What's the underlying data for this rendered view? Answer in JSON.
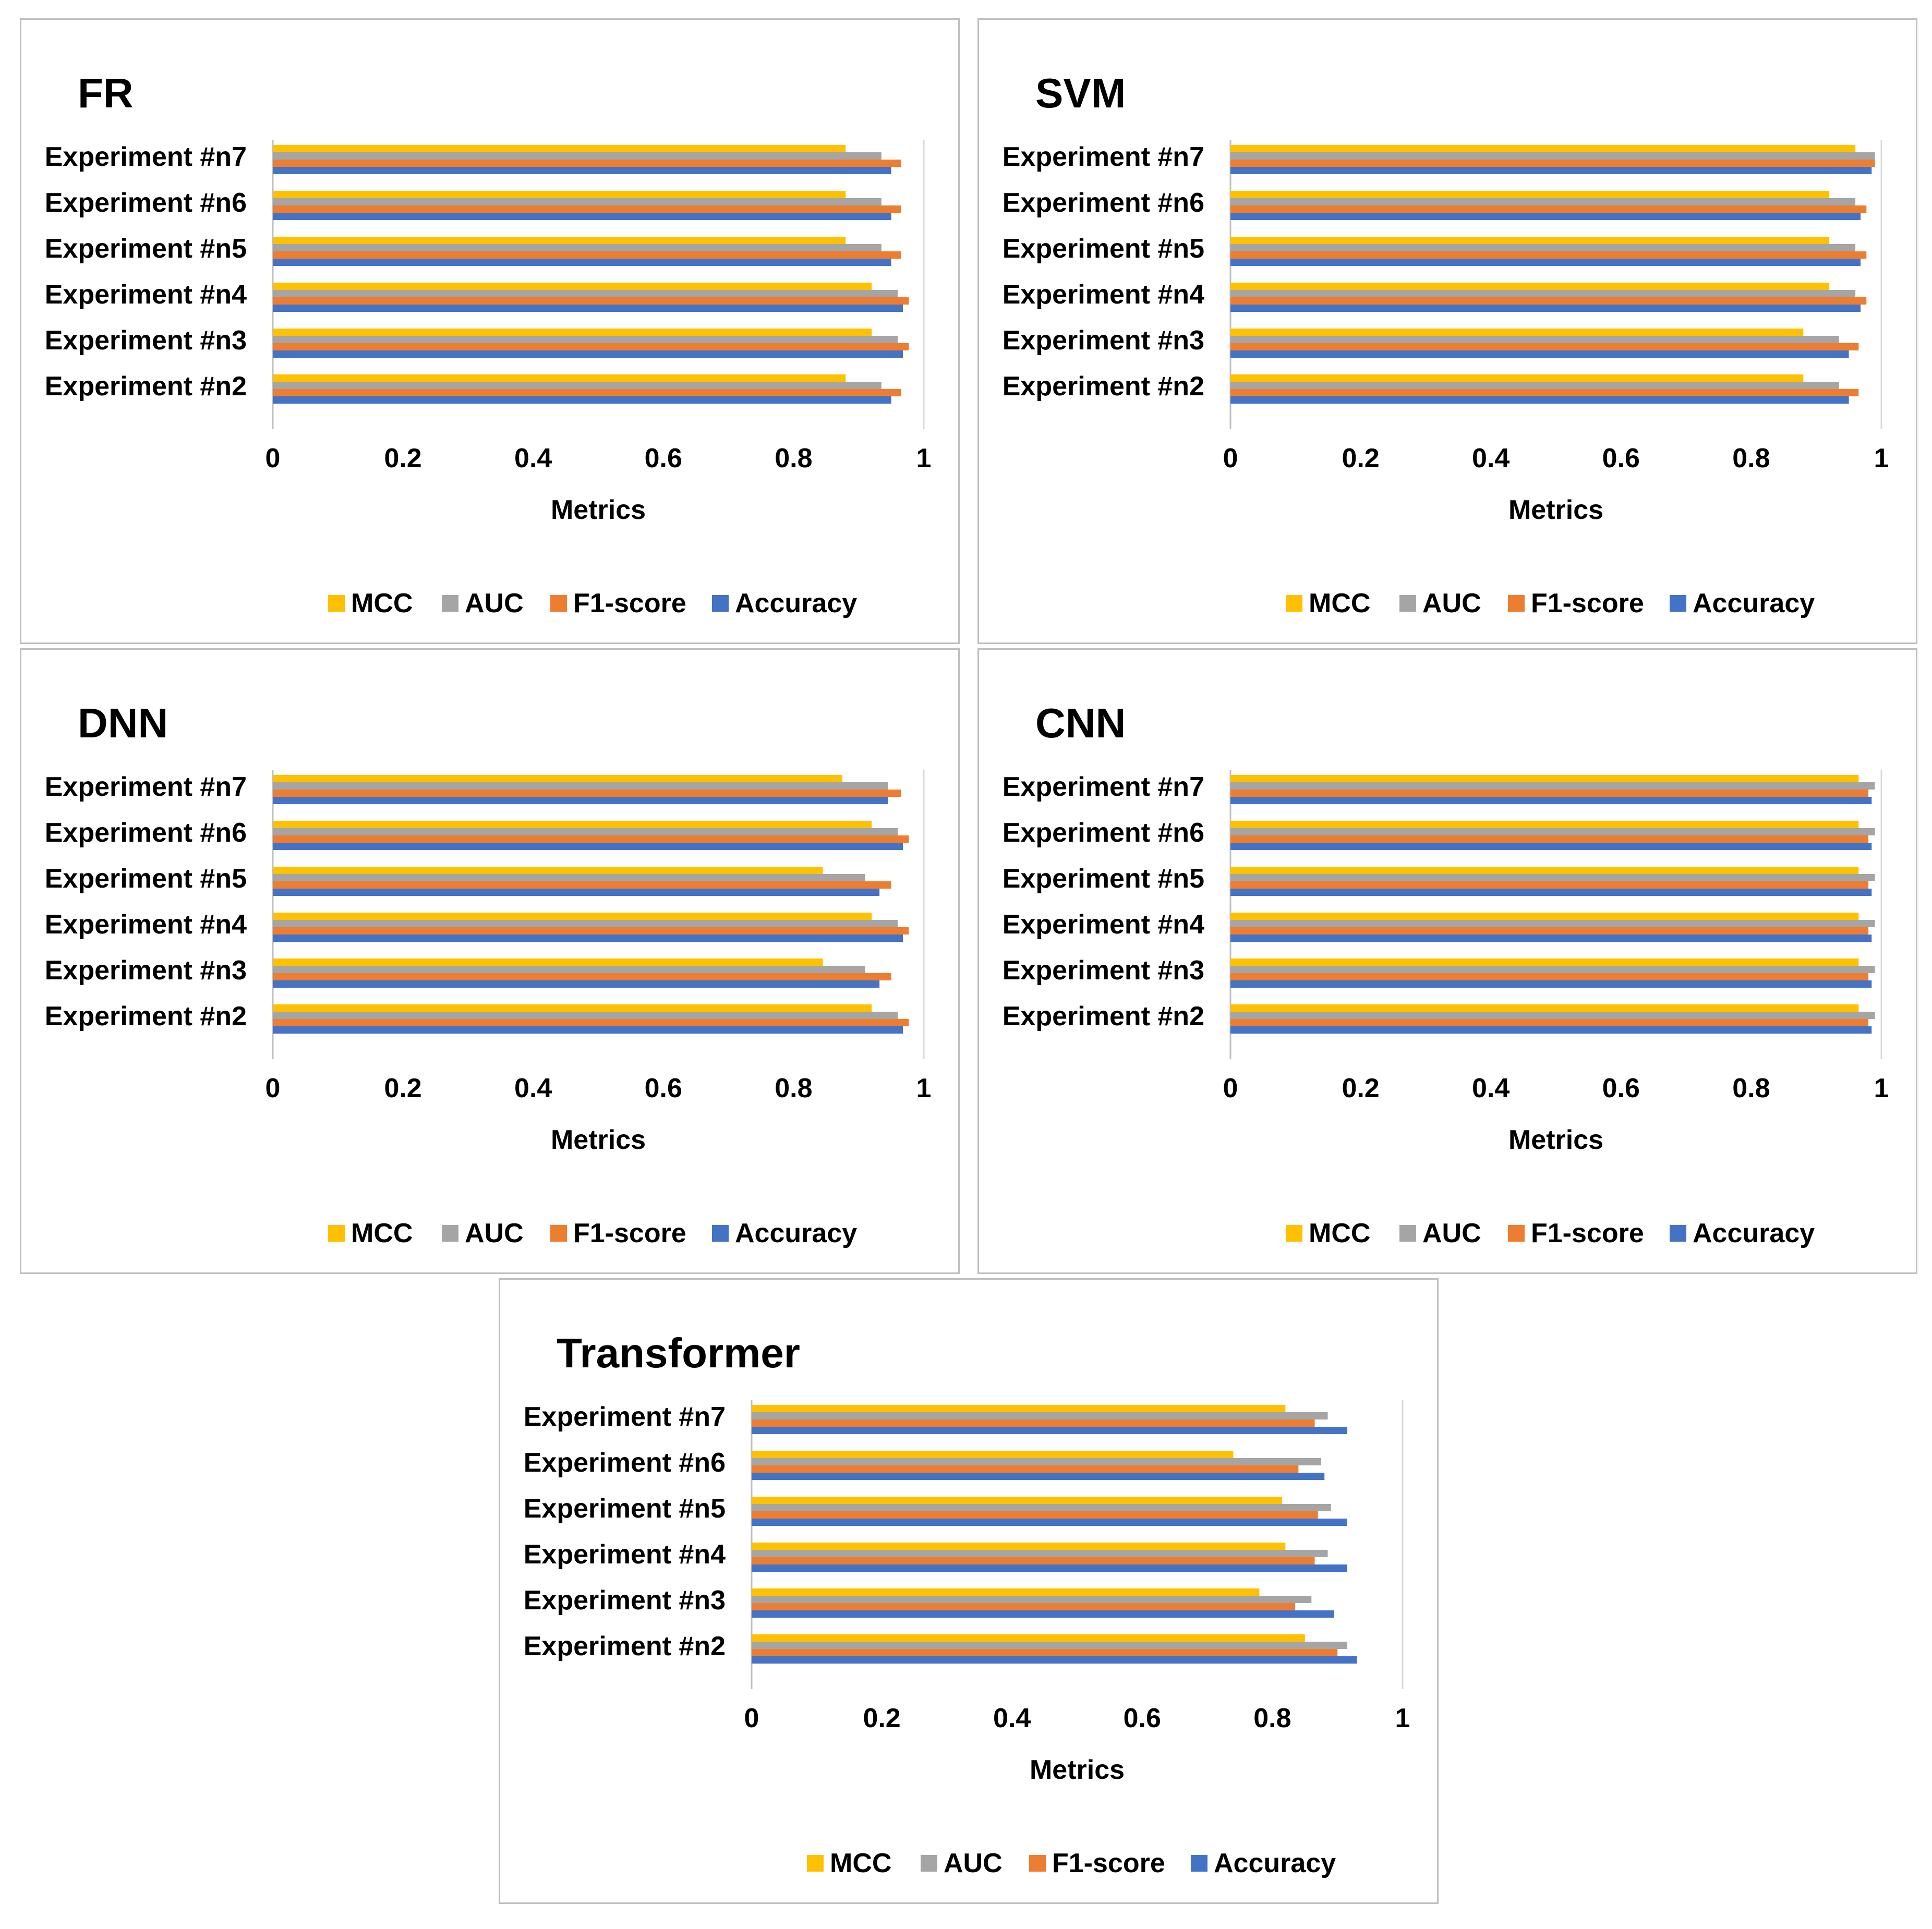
{
  "chart_data": [
    {
      "type": "bar",
      "orientation": "horizontal",
      "title": "FR",
      "xlabel": "Metrics",
      "ylabel": "",
      "categories": [
        "Experiment #n2",
        "Experiment #n3",
        "Experiment #n4",
        "Experiment #n5",
        "Experiment #n6",
        "Experiment #n7"
      ],
      "xlim": [
        0,
        1
      ],
      "xticks": [
        "0",
        "0.2",
        "0.4",
        "0.6",
        "0.8",
        "1"
      ],
      "legend_position": "bottom",
      "series": [
        {
          "name": "MCC",
          "color": "#FFC000",
          "values": [
            0.88,
            0.92,
            0.92,
            0.88,
            0.88,
            0.88
          ]
        },
        {
          "name": "AUC",
          "color": "#A5A5A5",
          "values": [
            0.935,
            0.96,
            0.96,
            0.935,
            0.935,
            0.935
          ]
        },
        {
          "name": "F1-score",
          "color": "#ED7D31",
          "values": [
            0.965,
            0.977,
            0.977,
            0.965,
            0.965,
            0.965
          ]
        },
        {
          "name": "Accuracy",
          "color": "#4472C4",
          "values": [
            0.95,
            0.968,
            0.968,
            0.95,
            0.95,
            0.95
          ]
        }
      ]
    },
    {
      "type": "bar",
      "orientation": "horizontal",
      "title": "SVM",
      "xlabel": "Metrics",
      "ylabel": "",
      "categories": [
        "Experiment #n2",
        "Experiment #n3",
        "Experiment #n4",
        "Experiment #n5",
        "Experiment #n6",
        "Experiment #n7"
      ],
      "xlim": [
        0,
        1
      ],
      "xticks": [
        "0",
        "0.2",
        "0.4",
        "0.6",
        "0.8",
        "1"
      ],
      "legend_position": "bottom",
      "series": [
        {
          "name": "MCC",
          "color": "#FFC000",
          "values": [
            0.88,
            0.88,
            0.92,
            0.92,
            0.92,
            0.96
          ]
        },
        {
          "name": "AUC",
          "color": "#A5A5A5",
          "values": [
            0.935,
            0.935,
            0.96,
            0.96,
            0.96,
            0.99
          ]
        },
        {
          "name": "F1-score",
          "color": "#ED7D31",
          "values": [
            0.965,
            0.965,
            0.977,
            0.977,
            0.977,
            0.99
          ]
        },
        {
          "name": "Accuracy",
          "color": "#4472C4",
          "values": [
            0.95,
            0.95,
            0.968,
            0.968,
            0.968,
            0.985
          ]
        }
      ]
    },
    {
      "type": "bar",
      "orientation": "horizontal",
      "title": "DNN",
      "xlabel": "Metrics",
      "ylabel": "",
      "categories": [
        "Experiment #n2",
        "Experiment #n3",
        "Experiment #n4",
        "Experiment #n5",
        "Experiment #n6",
        "Experiment #n7"
      ],
      "xlim": [
        0,
        1
      ],
      "xticks": [
        "0",
        "0.2",
        "0.4",
        "0.6",
        "0.8",
        "1"
      ],
      "legend_position": "bottom",
      "series": [
        {
          "name": "MCC",
          "color": "#FFC000",
          "values": [
            0.92,
            0.845,
            0.92,
            0.845,
            0.92,
            0.875
          ]
        },
        {
          "name": "AUC",
          "color": "#A5A5A5",
          "values": [
            0.96,
            0.91,
            0.96,
            0.91,
            0.96,
            0.945
          ]
        },
        {
          "name": "F1-score",
          "color": "#ED7D31",
          "values": [
            0.977,
            0.95,
            0.977,
            0.95,
            0.977,
            0.965
          ]
        },
        {
          "name": "Accuracy",
          "color": "#4472C4",
          "values": [
            0.968,
            0.932,
            0.968,
            0.932,
            0.968,
            0.945
          ]
        }
      ]
    },
    {
      "type": "bar",
      "orientation": "horizontal",
      "title": "CNN",
      "xlabel": "Metrics",
      "ylabel": "",
      "categories": [
        "Experiment #n2",
        "Experiment #n3",
        "Experiment #n4",
        "Experiment #n5",
        "Experiment #n6",
        "Experiment #n7"
      ],
      "xlim": [
        0,
        1
      ],
      "xticks": [
        "0",
        "0.2",
        "0.4",
        "0.6",
        "0.8",
        "1"
      ],
      "legend_position": "bottom",
      "series": [
        {
          "name": "MCC",
          "color": "#FFC000",
          "values": [
            0.965,
            0.965,
            0.965,
            0.965,
            0.965,
            0.965
          ]
        },
        {
          "name": "AUC",
          "color": "#A5A5A5",
          "values": [
            0.99,
            0.99,
            0.99,
            0.99,
            0.99,
            0.99
          ]
        },
        {
          "name": "F1-score",
          "color": "#ED7D31",
          "values": [
            0.98,
            0.98,
            0.98,
            0.98,
            0.98,
            0.98
          ]
        },
        {
          "name": "Accuracy",
          "color": "#4472C4",
          "values": [
            0.985,
            0.985,
            0.985,
            0.985,
            0.985,
            0.985
          ]
        }
      ]
    },
    {
      "type": "bar",
      "orientation": "horizontal",
      "title": "Transformer",
      "xlabel": "Metrics",
      "ylabel": "",
      "categories": [
        "Experiment #n2",
        "Experiment #n3",
        "Experiment #n4",
        "Experiment #n5",
        "Experiment #n6",
        "Experiment #n7"
      ],
      "xlim": [
        0,
        1
      ],
      "xticks": [
        "0",
        "0.2",
        "0.4",
        "0.6",
        "0.8",
        "1"
      ],
      "legend_position": "bottom",
      "series": [
        {
          "name": "MCC",
          "color": "#FFC000",
          "values": [
            0.85,
            0.78,
            0.82,
            0.815,
            0.74,
            0.82
          ]
        },
        {
          "name": "AUC",
          "color": "#A5A5A5",
          "values": [
            0.915,
            0.86,
            0.885,
            0.89,
            0.875,
            0.885
          ]
        },
        {
          "name": "F1-score",
          "color": "#ED7D31",
          "values": [
            0.9,
            0.835,
            0.865,
            0.87,
            0.84,
            0.865
          ]
        },
        {
          "name": "Accuracy",
          "color": "#4472C4",
          "values": [
            0.93,
            0.895,
            0.915,
            0.915,
            0.88,
            0.915
          ]
        }
      ]
    }
  ]
}
